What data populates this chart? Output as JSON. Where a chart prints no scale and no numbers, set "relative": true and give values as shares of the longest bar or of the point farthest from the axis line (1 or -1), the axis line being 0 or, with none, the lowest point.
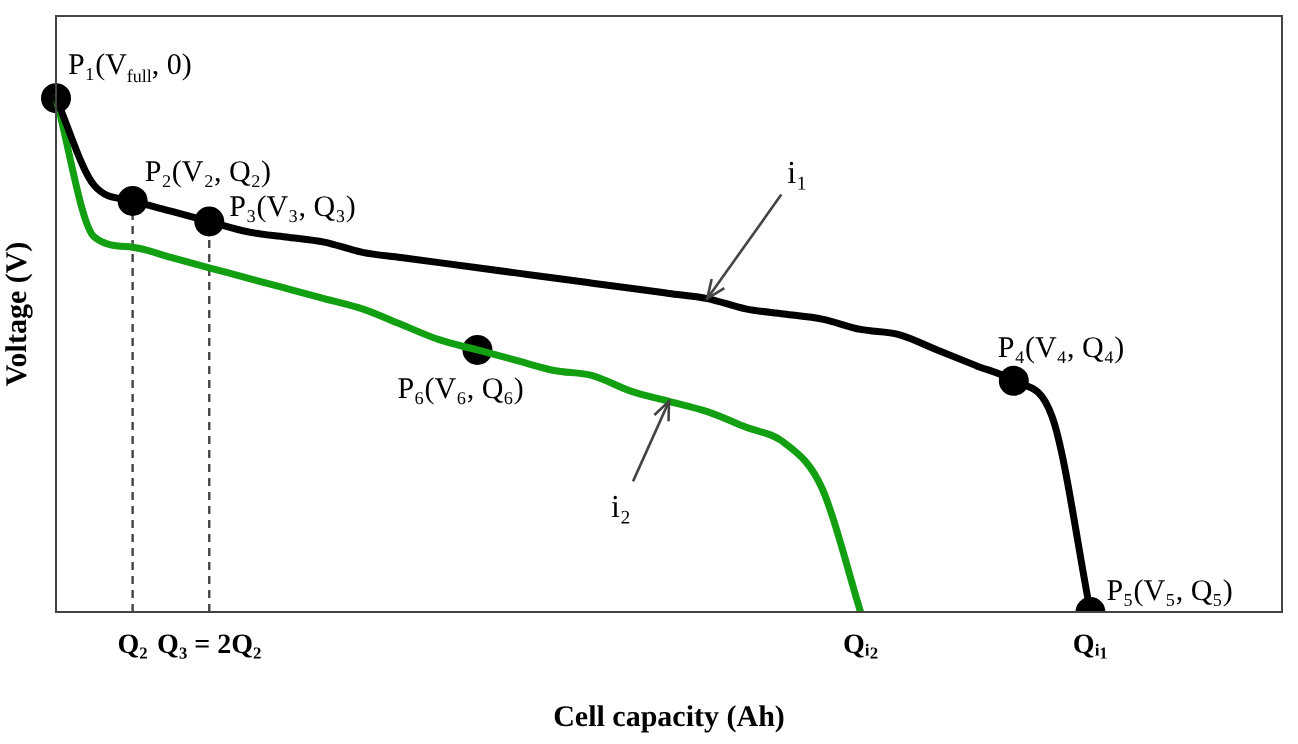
{
  "chart_data": {
    "type": "line",
    "relative": true,
    "xlabel": "Cell capacity (Ah)",
    "ylabel": "Voltage (V)",
    "categories": [
      null,
      null,
      "Q₂",
      null,
      "Q₃ = 2Q₂",
      null,
      null,
      null,
      null,
      null,
      null,
      null,
      null,
      null,
      null,
      null,
      null,
      null,
      null,
      null,
      null,
      "Qᵢ₂",
      null,
      null,
      null,
      null,
      null,
      "Qᵢ₁",
      null,
      null,
      null,
      null,
      null
    ],
    "grid": false,
    "legend": false,
    "marker": "none",
    "line_style": "solid",
    "series": [
      {
        "color": "#000000",
        "values": [
          1,
          0.83,
          0.8,
          0.78,
          0.76,
          0.74,
          0.73,
          0.72,
          0.7,
          0.69,
          0.68,
          0.67,
          0.66,
          0.65,
          0.64,
          0.63,
          0.62,
          0.61,
          0.59,
          0.58,
          0.57,
          0.55,
          0.54,
          0.51,
          0.48,
          0.45,
          0.38,
          0,
          null,
          null,
          null,
          null,
          null
        ]
      },
      {
        "color": "#12a012",
        "values": [
          1,
          0.73,
          0.71,
          0.69,
          0.67,
          0.65,
          0.63,
          0.61,
          0.59,
          0.56,
          0.53,
          0.51,
          0.49,
          0.47,
          0.46,
          0.43,
          0.41,
          0.39,
          0.36,
          0.33,
          0.24,
          0,
          null,
          null,
          null,
          null,
          null,
          null,
          null,
          null,
          null,
          null,
          null
        ]
      },
      {
        "type": "scatter",
        "marker": "circle",
        "color": "#000000",
        "values": [
          1,
          null,
          0.8,
          null,
          0.76,
          null,
          null,
          null,
          null,
          null,
          null,
          0.51,
          null,
          null,
          null,
          null,
          null,
          null,
          null,
          null,
          null,
          null,
          null,
          null,
          null,
          0.45,
          null,
          0,
          null,
          null,
          null,
          null,
          null
        ]
      }
    ],
    "ref_lines": [
      {
        "axis": "x",
        "value": "Q₂",
        "line_style": "dashed",
        "color": "#444444"
      },
      {
        "axis": "x",
        "value": "Q₃ = 2Q₂",
        "line_style": "dashed",
        "color": "#444444"
      }
    ],
    "annotations": [
      "P₁(V$_{full}$, 0)",
      "P₂(V₂, Q₂)",
      "P₃(V₃, Q₃)",
      "P₆(V₆, Q₆)",
      "P₄(V₄, Q₄)",
      "P₅(V₅, Q₅)",
      "i₁",
      "i₂"
    ]
  }
}
